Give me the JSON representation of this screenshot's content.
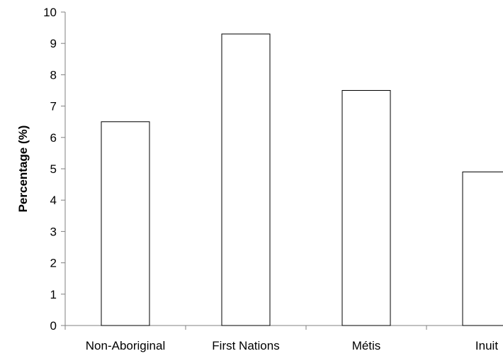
{
  "chart_data": {
    "type": "bar",
    "title": "",
    "xlabel": "",
    "ylabel": "Percentage (%)",
    "categories": [
      "Non-Aboriginal",
      "First Nations",
      "Métis",
      "Inuit"
    ],
    "values": [
      6.5,
      9.3,
      7.5,
      4.9
    ],
    "ylim": [
      0,
      10
    ],
    "yticks": [
      "0",
      "1",
      "2",
      "3",
      "4",
      "5",
      "6",
      "7",
      "8",
      "9",
      "10"
    ],
    "grid": false,
    "legend": "none",
    "bar_fill": "#ffffff",
    "bar_stroke": "#000000",
    "axis_color": "#808080"
  }
}
